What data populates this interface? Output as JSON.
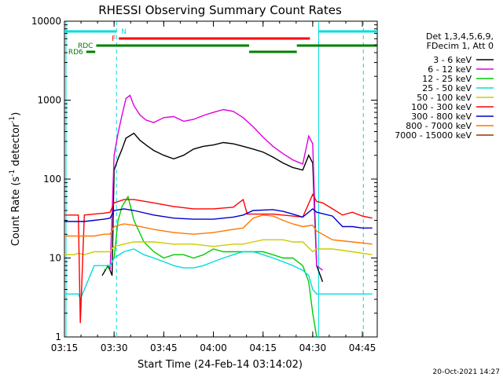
{
  "chart_data": {
    "type": "line",
    "title": "RHESSI Observing Summary Count Rates",
    "xlabel": "Start Time (24-Feb-14 03:14:02)",
    "ylabel_main": "Count Rate (s",
    "ylabel_sup1": "-1",
    "ylabel_mid": " detector",
    "ylabel_sup2": "-1",
    "ylabel_end": ")",
    "y_scale": "log",
    "ylim": [
      1,
      10000
    ],
    "xlim_minutes": [
      3.25,
      4.825
    ],
    "x_ticks": [
      {
        "label": "03:15",
        "t": 3.25
      },
      {
        "label": "03:30",
        "t": 3.5
      },
      {
        "label": "03:45",
        "t": 3.75
      },
      {
        "label": "04:00",
        "t": 4.0
      },
      {
        "label": "04:15",
        "t": 4.25
      },
      {
        "label": "04:30",
        "t": 4.5
      },
      {
        "label": "04:45",
        "t": 4.75
      }
    ],
    "y_ticks": [
      {
        "label": "1",
        "v": 1
      },
      {
        "label": "10",
        "v": 10
      },
      {
        "label": "100",
        "v": 100
      },
      {
        "label": "1000",
        "v": 1000
      },
      {
        "label": "10000",
        "v": 10000
      }
    ],
    "legend_header": [
      "Det 1,3,4,5,6,9,",
      "FDecim 1, Att 0"
    ],
    "legend_placement": "right",
    "series": [
      {
        "name": "3 - 6 keV",
        "color": "#000000",
        "x": [
          3.44,
          3.47,
          3.49,
          3.5,
          3.52,
          3.54,
          3.56,
          3.6,
          3.63,
          3.67,
          3.7,
          3.75,
          3.8,
          3.85,
          3.9,
          3.95,
          4.0,
          4.05,
          4.1,
          4.15,
          4.2,
          4.25,
          4.3,
          4.35,
          4.4,
          4.45,
          4.48,
          4.5,
          4.52,
          4.55
        ],
        "y": [
          6,
          8,
          6,
          130,
          180,
          240,
          330,
          380,
          310,
          260,
          230,
          200,
          180,
          200,
          240,
          260,
          270,
          290,
          280,
          260,
          240,
          220,
          190,
          160,
          140,
          130,
          200,
          160,
          8,
          5
        ]
      },
      {
        "name": "6 - 12 keV",
        "color": "#dd00dd",
        "x": [
          3.48,
          3.5,
          3.52,
          3.54,
          3.56,
          3.58,
          3.6,
          3.63,
          3.66,
          3.7,
          3.75,
          3.8,
          3.85,
          3.9,
          3.95,
          4.0,
          4.05,
          4.1,
          4.15,
          4.2,
          4.25,
          4.3,
          4.35,
          4.4,
          4.45,
          4.48,
          4.5,
          4.52,
          4.55
        ],
        "y": [
          7,
          200,
          380,
          650,
          1050,
          1150,
          850,
          650,
          560,
          520,
          600,
          620,
          540,
          570,
          640,
          700,
          760,
          720,
          600,
          460,
          340,
          260,
          210,
          175,
          155,
          350,
          280,
          8,
          7
        ]
      },
      {
        "name": "12 - 25 keV",
        "color": "#00cc00",
        "x": [
          3.45,
          3.48,
          3.5,
          3.52,
          3.54,
          3.57,
          3.6,
          3.65,
          3.7,
          3.75,
          3.8,
          3.85,
          3.9,
          3.95,
          4.0,
          4.05,
          4.1,
          4.2,
          4.25,
          4.3,
          4.35,
          4.4,
          4.45,
          4.48,
          4.5,
          4.52
        ],
        "y": [
          7,
          8,
          10,
          30,
          45,
          60,
          30,
          16,
          12,
          10,
          11,
          11,
          10,
          11,
          13,
          12,
          12,
          12,
          12,
          11,
          10,
          10,
          8,
          5,
          2,
          1
        ]
      },
      {
        "name": "25 - 50 keV",
        "color": "#00dddd",
        "x": [
          3.25,
          3.32,
          3.33,
          3.4,
          3.48,
          3.5,
          3.55,
          3.6,
          3.65,
          3.7,
          3.75,
          3.8,
          3.85,
          3.9,
          3.95,
          4.0,
          4.05,
          4.1,
          4.15,
          4.2,
          4.25,
          4.3,
          4.35,
          4.4,
          4.45,
          4.48,
          4.5,
          4.52,
          4.6,
          4.7,
          4.8
        ],
        "y": [
          3.5,
          3.5,
          3,
          8,
          8,
          10,
          12,
          13,
          11,
          10,
          9,
          8,
          7.5,
          7.5,
          8,
          9,
          10,
          11,
          12,
          12,
          11,
          10,
          9,
          8,
          7,
          6,
          4,
          3.5,
          3.5,
          3.5,
          3.5
        ]
      },
      {
        "name": "50 - 100 keV",
        "color": "#cccc00",
        "x": [
          3.25,
          3.3,
          3.32,
          3.35,
          3.4,
          3.45,
          3.48,
          3.5,
          3.55,
          3.6,
          3.7,
          3.8,
          3.9,
          4.0,
          4.1,
          4.15,
          4.2,
          4.25,
          4.3,
          4.35,
          4.4,
          4.45,
          4.5,
          4.52,
          4.6,
          4.7,
          4.8
        ],
        "y": [
          11,
          11,
          11.5,
          11,
          12,
          12,
          12,
          14,
          15,
          16,
          16,
          15,
          15,
          14,
          15,
          15,
          16,
          17,
          17,
          17,
          16,
          16,
          12,
          13,
          13,
          12,
          11
        ]
      },
      {
        "name": "100 - 300 keV",
        "color": "#ff0000",
        "x": [
          3.25,
          3.3,
          3.32,
          3.33,
          3.35,
          3.4,
          3.45,
          3.48,
          3.5,
          3.55,
          3.6,
          3.7,
          3.8,
          3.9,
          4.0,
          4.1,
          4.15,
          4.17,
          4.2,
          4.3,
          4.35,
          4.4,
          4.45,
          4.5,
          4.52,
          4.55,
          4.6,
          4.65,
          4.7,
          4.75,
          4.8
        ],
        "y": [
          35,
          35,
          35,
          1.5,
          35,
          36,
          37,
          38,
          50,
          55,
          55,
          50,
          45,
          42,
          42,
          44,
          55,
          36,
          36,
          36,
          35,
          34,
          33,
          64,
          52,
          50,
          42,
          35,
          38,
          34,
          32
        ]
      },
      {
        "name": "300 - 800 keV",
        "color": "#0000cc",
        "x": [
          3.25,
          3.3,
          3.35,
          3.4,
          3.45,
          3.48,
          3.5,
          3.55,
          3.6,
          3.7,
          3.8,
          3.9,
          4.0,
          4.1,
          4.15,
          4.2,
          4.3,
          4.35,
          4.4,
          4.45,
          4.5,
          4.52,
          4.6,
          4.65,
          4.7,
          4.75,
          4.8
        ],
        "y": [
          29,
          29,
          29,
          30,
          31,
          32,
          40,
          42,
          40,
          35,
          32,
          31,
          31,
          33,
          35,
          40,
          41,
          39,
          36,
          33,
          42,
          38,
          34,
          25,
          25,
          24,
          24
        ]
      },
      {
        "name": "800 - 7000 keV",
        "color": "#ff7700",
        "x": [
          3.25,
          3.3,
          3.35,
          3.4,
          3.45,
          3.48,
          3.5,
          3.55,
          3.6,
          3.7,
          3.8,
          3.9,
          4.0,
          4.1,
          4.15,
          4.2,
          4.25,
          4.3,
          4.35,
          4.4,
          4.45,
          4.5,
          4.52,
          4.6,
          4.7,
          4.8
        ],
        "y": [
          19,
          19,
          19,
          19,
          20,
          20,
          25,
          27,
          26,
          23,
          21,
          20,
          21,
          23,
          24,
          32,
          35,
          34,
          30,
          27,
          25,
          26,
          22,
          17,
          16,
          15
        ]
      },
      {
        "name": "7000 - 15000 keV",
        "color": "#993300",
        "x": [],
        "y": []
      }
    ],
    "vlines_cyan_dashed_t": [
      3.512,
      4.755
    ],
    "vlines_cyan_solid_t": [
      3.258,
      4.53
    ],
    "flags": [
      {
        "label": "N",
        "color": "#00dddd",
        "bar": [
          3.25,
          3.512
        ],
        "bar2": [
          4.53,
          4.825
        ],
        "level": 0
      },
      {
        "label": "F",
        "color": "#ff0000",
        "bar": [
          3.524,
          4.486
        ],
        "level": 1
      },
      {
        "label": "RDC",
        "color": "#008000",
        "bar": [
          3.41,
          4.18
        ],
        "bar2": [
          4.42,
          4.825
        ],
        "level": 2
      },
      {
        "label": "RD6",
        "color": "#008000",
        "bar": [
          3.36,
          3.405
        ],
        "bar2": [
          4.18,
          4.42
        ],
        "level": 3
      }
    ],
    "footer_timestamp": "20-Oct-2021 14:27"
  }
}
